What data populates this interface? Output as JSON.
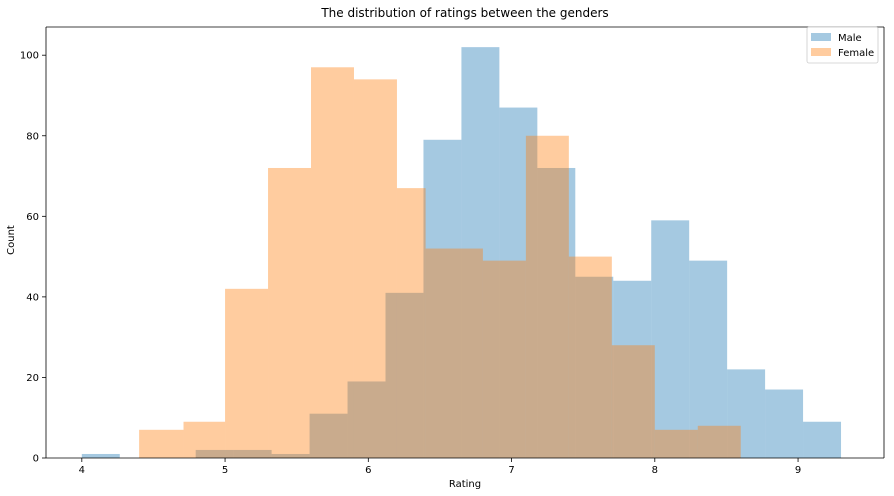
{
  "chart_data": {
    "type": "bar",
    "title": "The distribution of ratings between the genders",
    "xlabel": "Rating",
    "ylabel": "Count",
    "xlim": [
      3.75,
      9.6
    ],
    "ylim": [
      0,
      107
    ],
    "xticks": [
      4,
      5,
      6,
      7,
      8,
      9
    ],
    "yticks": [
      0,
      20,
      40,
      60,
      80,
      100
    ],
    "legend_position": "top-right",
    "series": [
      {
        "name": "Male",
        "color": "#1f77b4",
        "alpha": 0.4,
        "bin_edges": [
          4.0,
          4.265,
          4.53,
          4.795,
          5.06,
          5.325,
          5.59,
          5.855,
          6.12,
          6.385,
          6.65,
          6.915,
          7.18,
          7.445,
          7.71,
          7.975,
          8.24,
          8.505,
          8.77,
          9.035,
          9.3
        ],
        "counts": [
          1,
          0,
          0,
          2,
          2,
          1,
          11,
          19,
          41,
          79,
          102,
          87,
          72,
          45,
          44,
          59,
          49,
          22,
          17,
          9
        ]
      },
      {
        "name": "Female",
        "color": "#ff7f0e",
        "alpha": 0.4,
        "bin_edges": [
          4.4,
          4.71,
          5.0,
          5.3,
          5.6,
          5.9,
          6.2,
          6.4,
          6.8,
          7.1,
          7.4,
          7.7,
          8.0,
          8.3,
          8.6
        ],
        "counts": [
          7,
          9,
          42,
          72,
          97,
          94,
          67,
          52,
          49,
          80,
          50,
          28,
          7,
          8
        ]
      }
    ]
  }
}
